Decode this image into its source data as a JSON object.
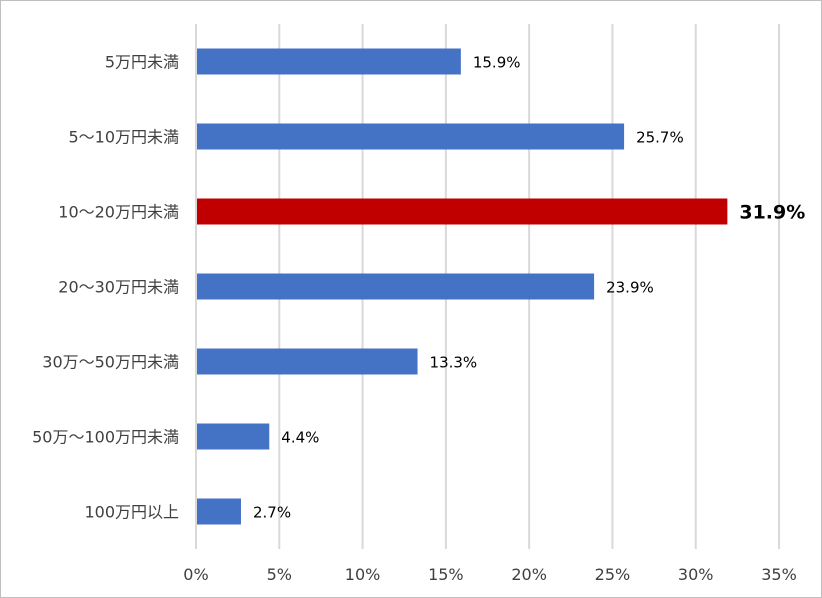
{
  "chart_data": {
    "type": "bar",
    "orientation": "horizontal",
    "categories": [
      "5万円未満",
      "5～10万円未満",
      "10～20万円未満",
      "20～30万円未満",
      "30万～50万円未満",
      "50万～100万円未満",
      "100万円以上"
    ],
    "values": [
      15.9,
      25.7,
      31.9,
      23.9,
      13.3,
      4.4,
      2.7
    ],
    "data_labels": [
      "15.9%",
      "25.7%",
      "31.9%",
      "23.9%",
      "13.3%",
      "4.4%",
      "2.7%"
    ],
    "highlight_index": 2,
    "xlim": [
      0,
      35
    ],
    "x_ticks": [
      "0%",
      "5%",
      "10%",
      "15%",
      "20%",
      "25%",
      "30%",
      "35%"
    ],
    "grid": "vertical",
    "colors": {
      "bar": "#4472c4",
      "highlight": "#c00000",
      "grid": "#d9d9d9"
    }
  }
}
